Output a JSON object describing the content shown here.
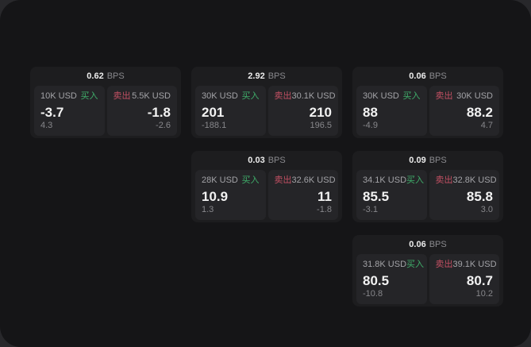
{
  "labels": {
    "buy": "买入",
    "sell": "卖出",
    "bps_unit": "BPS"
  },
  "colors": {
    "buy_green": "#3fae6a",
    "sell_red": "#c25063",
    "window_bg": "#151517",
    "card_bg": "#1d1d1f",
    "panel_bg": "#252528"
  },
  "cards": [
    {
      "bps": "0.62",
      "buy": {
        "amount": "10K USD",
        "value": "-3.7",
        "delta": "4.3"
      },
      "sell": {
        "amount": "5.5K USD",
        "value": "-1.8",
        "delta": "-2.6"
      }
    },
    {
      "bps": "2.92",
      "buy": {
        "amount": "30K USD",
        "value": "201",
        "delta": "-188.1"
      },
      "sell": {
        "amount": "30.1K USD",
        "value": "210",
        "delta": "196.5"
      }
    },
    {
      "bps": "0.06",
      "buy": {
        "amount": "30K USD",
        "value": "88",
        "delta": "-4.9"
      },
      "sell": {
        "amount": "30K USD",
        "value": "88.2",
        "delta": "4.7"
      }
    },
    {
      "bps": "0.03",
      "buy": {
        "amount": "28K USD",
        "value": "10.9",
        "delta": "1.3"
      },
      "sell": {
        "amount": "32.6K USD",
        "value": "11",
        "delta": "-1.8"
      }
    },
    {
      "bps": "0.09",
      "buy": {
        "amount": "34.1K USD",
        "value": "85.5",
        "delta": "-3.1"
      },
      "sell": {
        "amount": "32.8K USD",
        "value": "85.8",
        "delta": "3.0"
      }
    },
    {
      "bps": "0.06",
      "buy": {
        "amount": "31.8K USD",
        "value": "80.5",
        "delta": "-10.8"
      },
      "sell": {
        "amount": "39.1K USD",
        "value": "80.7",
        "delta": "10.2"
      }
    }
  ]
}
